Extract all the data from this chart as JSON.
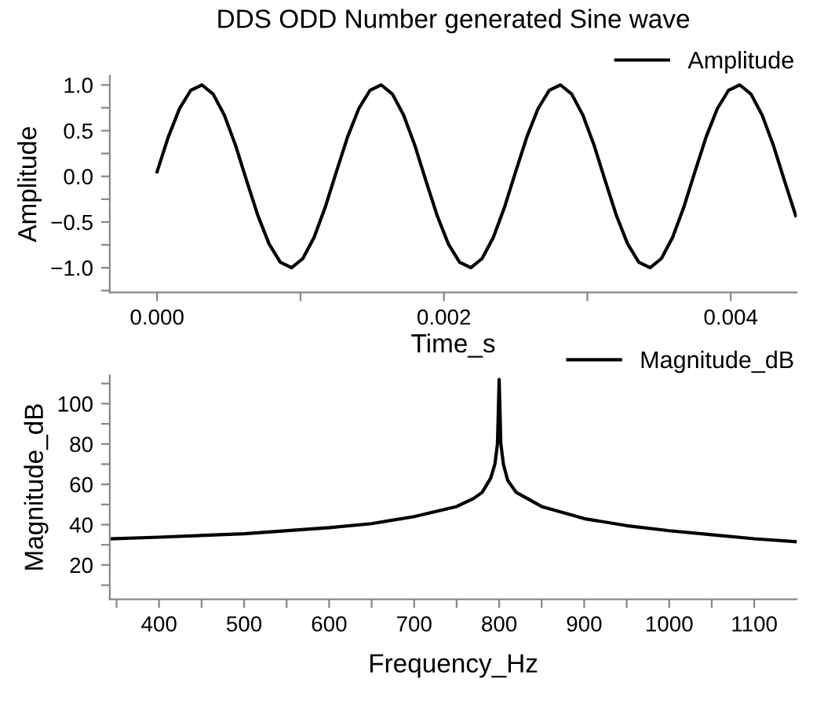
{
  "chart_data": [
    {
      "type": "line",
      "title": "DDS ODD Number generated Sine wave",
      "xlabel": "Time_s",
      "ylabel": "Amplitude",
      "xlim": [
        -0.00033,
        0.00446
      ],
      "ylim": [
        -1.27,
        1.1
      ],
      "xticks": [
        {
          "value": 0,
          "label": "0.000"
        },
        {
          "value": 0.001,
          "label": null
        },
        {
          "value": 0.002,
          "label": "0.002"
        },
        {
          "value": 0.003,
          "label": null
        },
        {
          "value": 0.004,
          "label": "0.004"
        }
      ],
      "yticks": [
        {
          "value": -1.25,
          "label": null
        },
        {
          "value": -1.0,
          "label": "−1.0"
        },
        {
          "value": -0.75,
          "label": null
        },
        {
          "value": -0.5,
          "label": "−0.5"
        },
        {
          "value": -0.25,
          "label": null
        },
        {
          "value": 0.0,
          "label": "0.0"
        },
        {
          "value": 0.25,
          "label": null
        },
        {
          "value": 0.5,
          "label": "0.5"
        },
        {
          "value": 0.75,
          "label": null
        },
        {
          "value": 1.0,
          "label": "1.0"
        }
      ],
      "grid": false,
      "legend": "top right",
      "marker": "none",
      "line_style": "solid",
      "series": [
        {
          "name": "Amplitude",
          "color": "#000000",
          "x": [
            0,
            7.8e-05,
            0.000156,
            0.000234,
            0.000313,
            0.000391,
            0.000469,
            0.000547,
            0.000625,
            0.000703,
            0.000781,
            0.000859,
            0.000938,
            0.001016,
            0.001094,
            0.001172,
            0.00125,
            0.001328,
            0.001406,
            0.001484,
            0.001563,
            0.001641,
            0.001719,
            0.001797,
            0.001875,
            0.001953,
            0.002031,
            0.002109,
            0.002188,
            0.002266,
            0.002344,
            0.002422,
            0.0025,
            0.002578,
            0.002656,
            0.002734,
            0.002813,
            0.002891,
            0.002969,
            0.003047,
            0.003125,
            0.003203,
            0.003281,
            0.003359,
            0.003438,
            0.003516,
            0.003594,
            0.003672,
            0.00375,
            0.003828,
            0.003906,
            0.003984,
            0.004063,
            0.004141,
            0.004219,
            0.004297,
            0.004375,
            0.004453
          ],
          "values": [
            0.05,
            0.43,
            0.74,
            0.94,
            1.0,
            0.9,
            0.67,
            0.34,
            -0.05,
            -0.43,
            -0.74,
            -0.94,
            -1.0,
            -0.9,
            -0.67,
            -0.34,
            0.05,
            0.43,
            0.74,
            0.94,
            1.0,
            0.9,
            0.67,
            0.34,
            -0.05,
            -0.43,
            -0.74,
            -0.94,
            -1.0,
            -0.9,
            -0.67,
            -0.34,
            0.05,
            0.43,
            0.74,
            0.94,
            1.0,
            0.9,
            0.67,
            0.34,
            -0.05,
            -0.43,
            -0.74,
            -0.94,
            -1.0,
            -0.9,
            -0.67,
            -0.34,
            0.05,
            0.43,
            0.74,
            0.94,
            1.0,
            0.9,
            0.67,
            0.34,
            -0.05,
            -0.43
          ]
        }
      ]
    },
    {
      "type": "line",
      "xlabel": "Frequency_Hz",
      "ylabel": "Magnitude_dB",
      "xlim": [
        342,
        1150
      ],
      "ylim": [
        3,
        114
      ],
      "xticks": [
        {
          "value": 350,
          "label": null
        },
        400,
        {
          "value": 450,
          "label": null
        },
        500,
        {
          "value": 550,
          "label": null
        },
        600,
        {
          "value": 650,
          "label": null
        },
        700,
        {
          "value": 750,
          "label": null
        },
        800,
        {
          "value": 850,
          "label": null
        },
        900,
        {
          "value": 950,
          "label": null
        },
        1000,
        {
          "value": 1050,
          "label": null
        },
        1100
      ],
      "yticks": [
        {
          "value": 10,
          "label": null
        },
        20,
        {
          "value": 30,
          "label": null
        },
        40,
        {
          "value": 50,
          "label": null
        },
        60,
        {
          "value": 70,
          "label": null
        },
        80,
        {
          "value": 90,
          "label": null
        },
        100,
        {
          "value": 110,
          "label": null
        }
      ],
      "grid": false,
      "legend": "top right",
      "marker": "none",
      "line_style": "solid",
      "series": [
        {
          "name": "Magnitude_dB",
          "color": "#000000",
          "x": [
            342,
            400,
            500,
            600,
            650,
            700,
            750,
            770,
            780,
            790,
            795,
            798,
            800,
            802,
            805,
            810,
            820,
            850,
            900,
            950,
            1000,
            1050,
            1100,
            1150
          ],
          "values": [
            33,
            33.8,
            35.5,
            38.5,
            40.5,
            44,
            49,
            53,
            56,
            63,
            70,
            80,
            112,
            80,
            70,
            62,
            56,
            49,
            43,
            39.5,
            37,
            35,
            33,
            31.5
          ]
        }
      ]
    }
  ]
}
